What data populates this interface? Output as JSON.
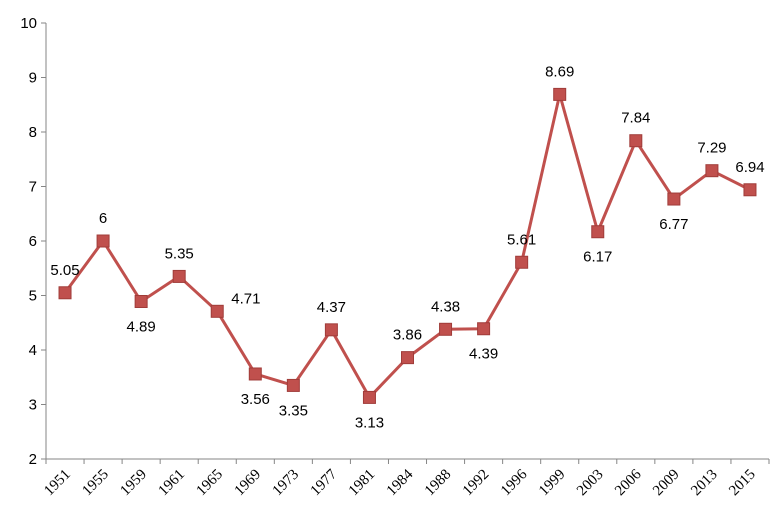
{
  "chart_data": {
    "type": "line",
    "title": "",
    "xlabel": "",
    "ylabel": "",
    "ylim": [
      2,
      10
    ],
    "yticks": [
      "2",
      "3",
      "4",
      "5",
      "6",
      "7",
      "8",
      "9",
      "10"
    ],
    "categories": [
      "1951",
      "1955",
      "1959",
      "1961",
      "1965",
      "1969",
      "1973",
      "1977",
      "1981",
      "1984",
      "1988",
      "1992",
      "1996",
      "1999",
      "2003",
      "2006",
      "2009",
      "2013",
      "2015"
    ],
    "values": [
      5.05,
      6,
      4.89,
      5.35,
      4.71,
      3.56,
      3.35,
      4.37,
      3.13,
      3.86,
      4.38,
      4.39,
      5.61,
      8.69,
      6.17,
      7.84,
      6.77,
      7.29,
      6.94
    ],
    "data_labels": [
      "5.05",
      "6",
      "4.89",
      "5.35",
      "4.71",
      "3.56",
      "3.35",
      "4.37",
      "3.13",
      "3.86",
      "4.38",
      "4.39",
      "5.61",
      "8.69",
      "6.17",
      "7.84",
      "6.77",
      "7.29",
      "6.94"
    ],
    "label_positions": [
      "above",
      "above",
      "below",
      "above",
      "right",
      "below",
      "below",
      "above",
      "below",
      "above",
      "above",
      "below",
      "above",
      "above",
      "below",
      "above",
      "below",
      "above",
      "above"
    ],
    "series_color": "#c0504d",
    "marker_color": "#c0504d",
    "marker_edge": "#a03c39",
    "axis_color": "#868686",
    "grid": false,
    "legend": "none"
  }
}
